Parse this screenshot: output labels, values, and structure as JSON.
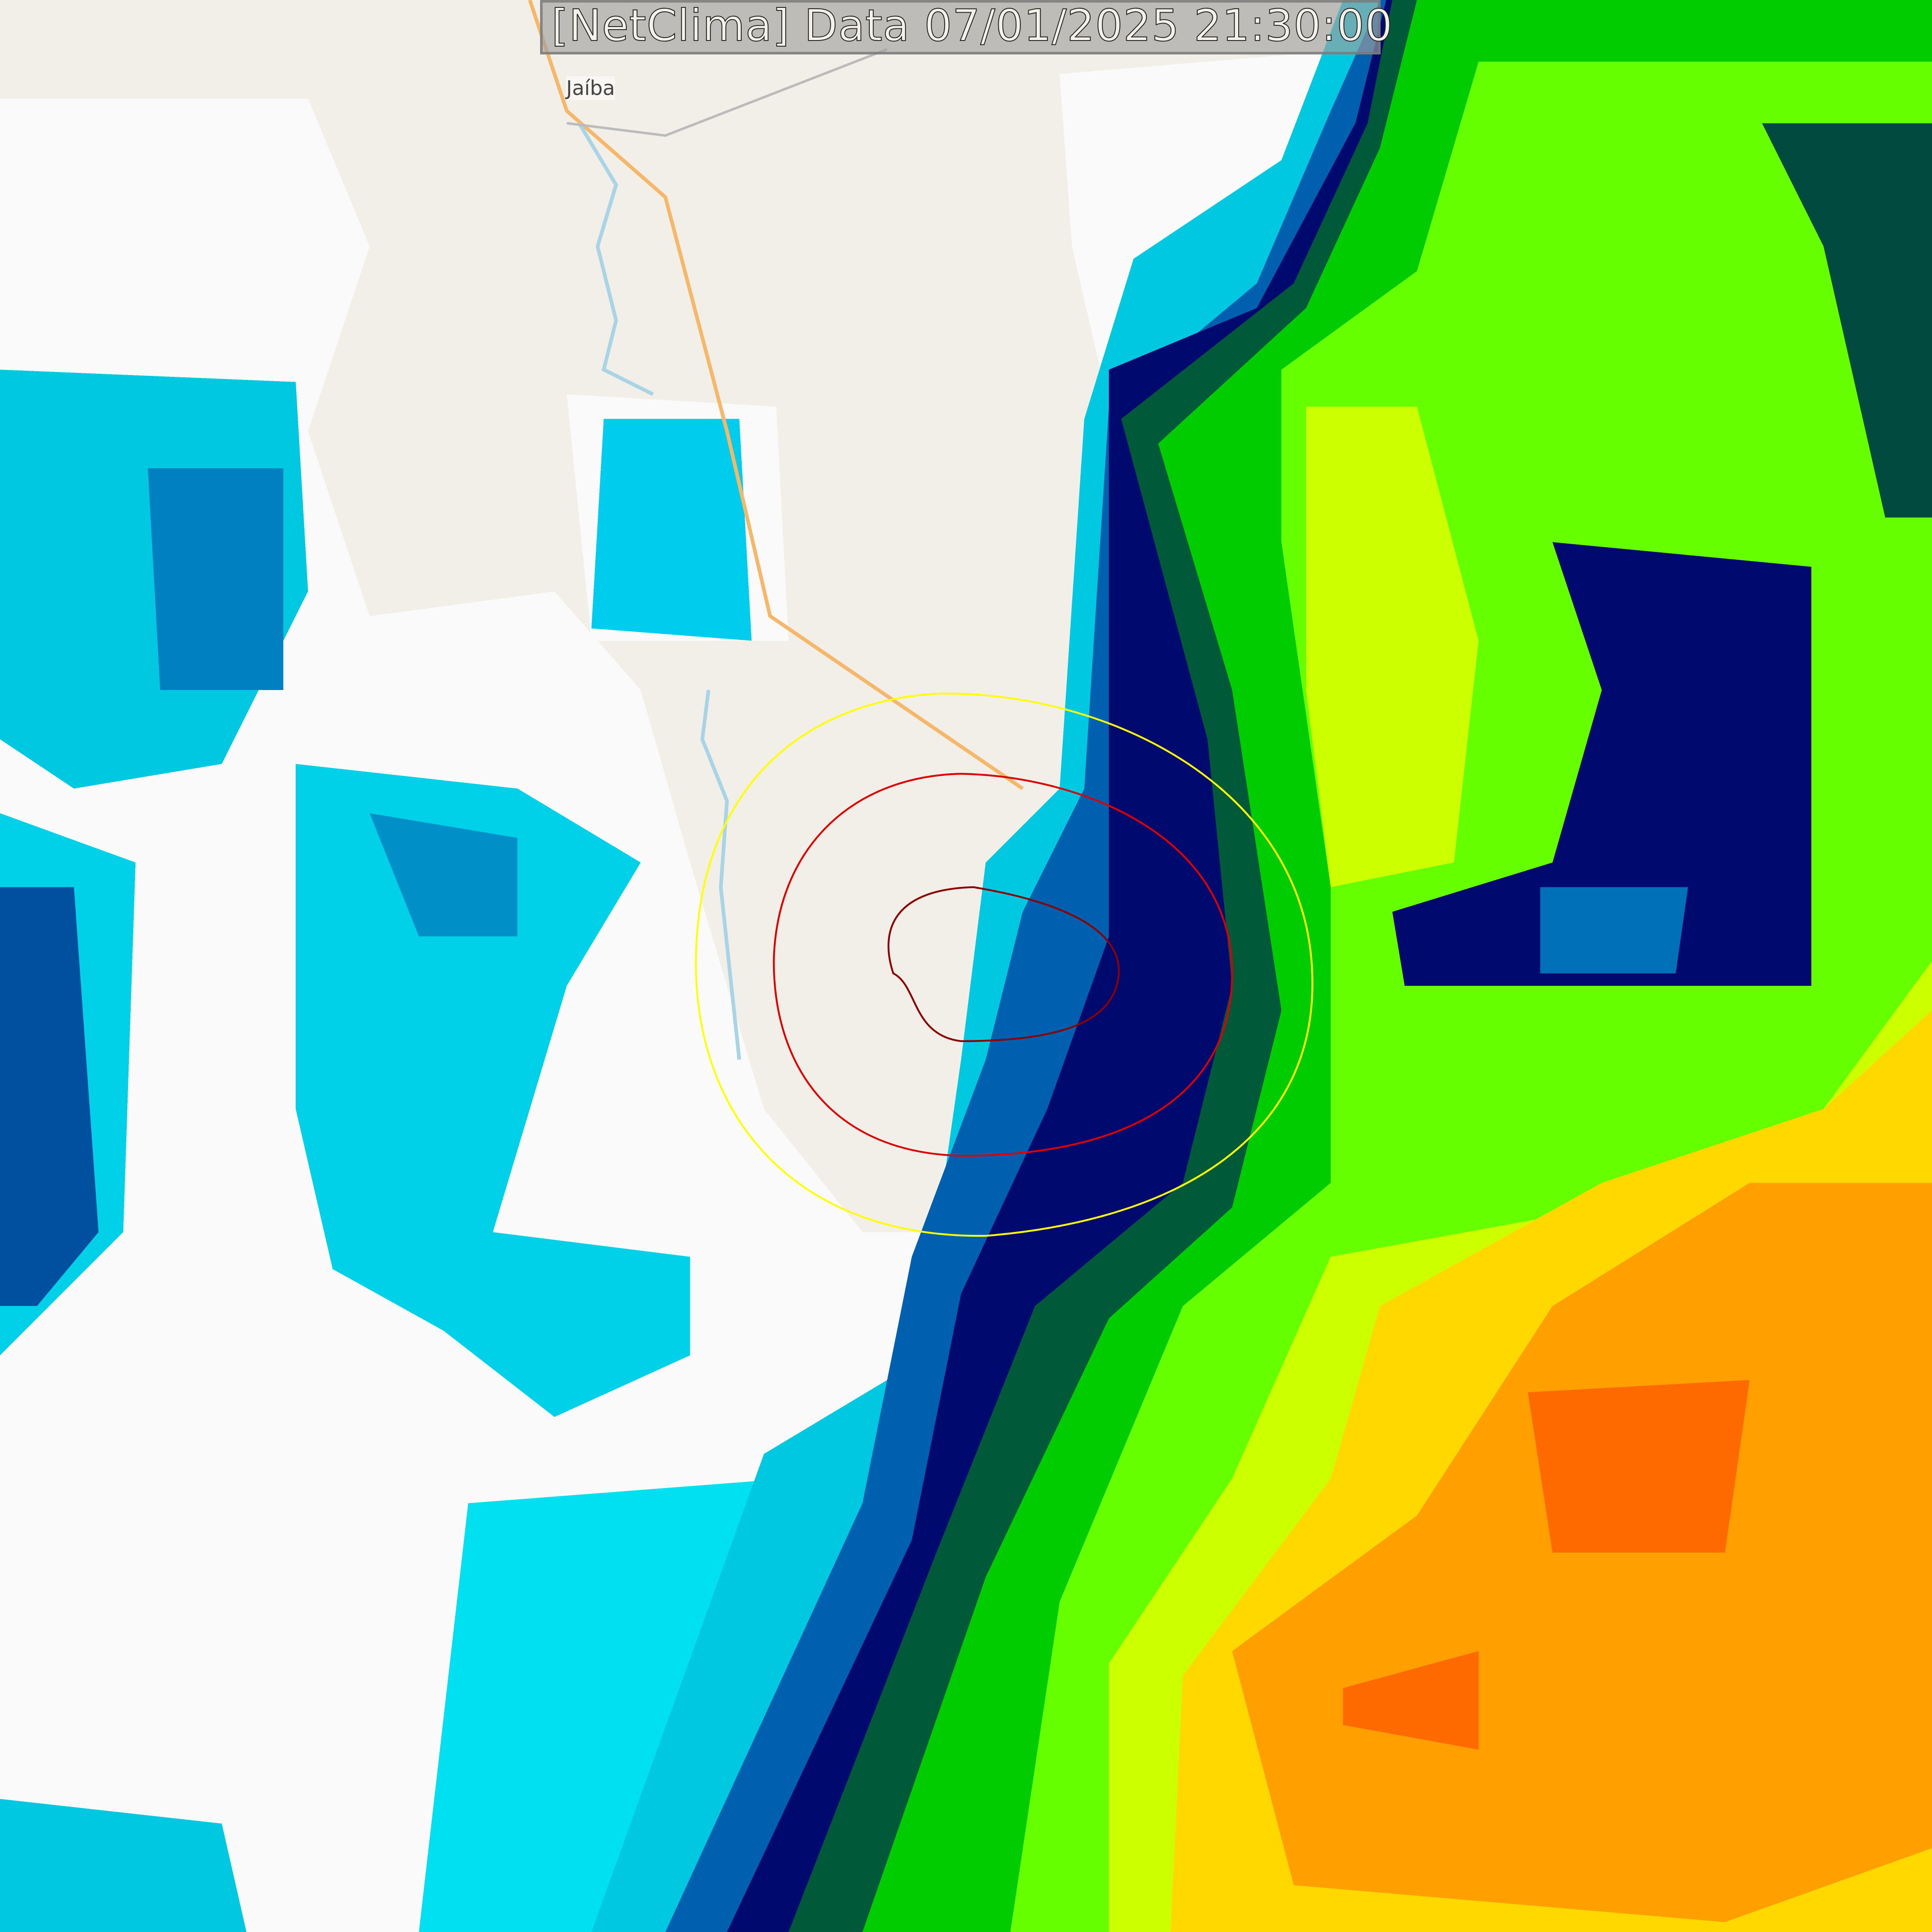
{
  "title": "[NetClima] Data 07/01/2025 21:30:00",
  "map": {
    "town_label": "Jaíba",
    "basemap_color": "#f2efe9",
    "road_color": "#f5b86a",
    "river_color": "#a8d4e6",
    "range_rings": [
      {
        "color": "#ffff00"
      },
      {
        "color": "#dd0000"
      },
      {
        "color": "#8b0000"
      }
    ]
  },
  "radar_palette": [
    "#fafafa",
    "#00ffff",
    "#00c8e0",
    "#0090c8",
    "#0050a0",
    "#001070",
    "#004a40",
    "#009a20",
    "#00ee00",
    "#66ff00",
    "#ccff00",
    "#ffee00",
    "#ffc000",
    "#ff9a00",
    "#ff6a00"
  ]
}
